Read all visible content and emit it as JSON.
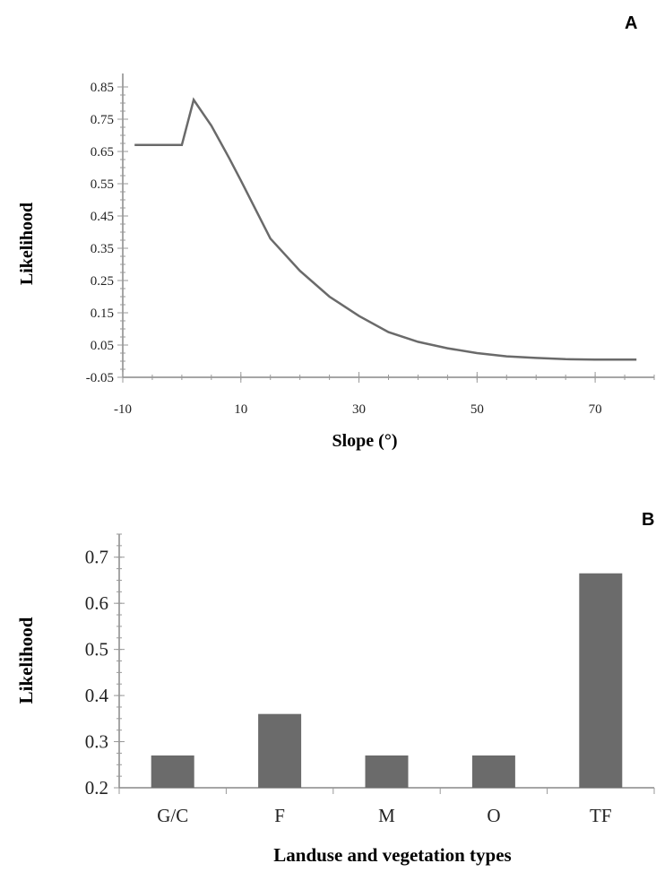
{
  "chart_data": [
    {
      "panel_label": "A",
      "type": "line",
      "xlabel": "Slope (°)",
      "ylabel": "Likelihood",
      "xlim": [
        -10,
        80
      ],
      "ylim": [
        -0.05,
        0.85
      ],
      "xticks": [
        -10,
        10,
        30,
        50,
        70
      ],
      "yticks": [
        -0.05,
        0.05,
        0.15,
        0.25,
        0.35,
        0.45,
        0.55,
        0.65,
        0.75,
        0.85
      ],
      "ytick_labels": [
        "-0.05",
        "0.05",
        "0.15",
        "0.25",
        "0.35",
        "0.45",
        "0.55",
        "0.65",
        "0.75",
        "0.85"
      ],
      "xtick_labels": [
        "-10",
        "10",
        "30",
        "50",
        "70"
      ],
      "x": [
        -8,
        -5,
        -2,
        0,
        2,
        5,
        8,
        10,
        15,
        20,
        25,
        30,
        35,
        40,
        45,
        50,
        55,
        60,
        65,
        70,
        77
      ],
      "y": [
        0.67,
        0.67,
        0.67,
        0.67,
        0.81,
        0.73,
        0.63,
        0.56,
        0.38,
        0.28,
        0.2,
        0.14,
        0.09,
        0.06,
        0.04,
        0.025,
        0.015,
        0.01,
        0.006,
        0.005,
        0.005
      ]
    },
    {
      "panel_label": "B",
      "type": "bar",
      "xlabel": "Landuse and vegetation types",
      "ylabel": "Likelihood",
      "ylim": [
        0.2,
        0.75
      ],
      "yticks": [
        0.2,
        0.3,
        0.4,
        0.5,
        0.6,
        0.7
      ],
      "ytick_labels": [
        "0.2",
        "0.3",
        "0.4",
        "0.5",
        "0.6",
        "0.7"
      ],
      "categories": [
        "G/C",
        "F",
        "M",
        "O",
        "TF"
      ],
      "values": [
        0.27,
        0.36,
        0.27,
        0.27,
        0.665
      ]
    }
  ]
}
